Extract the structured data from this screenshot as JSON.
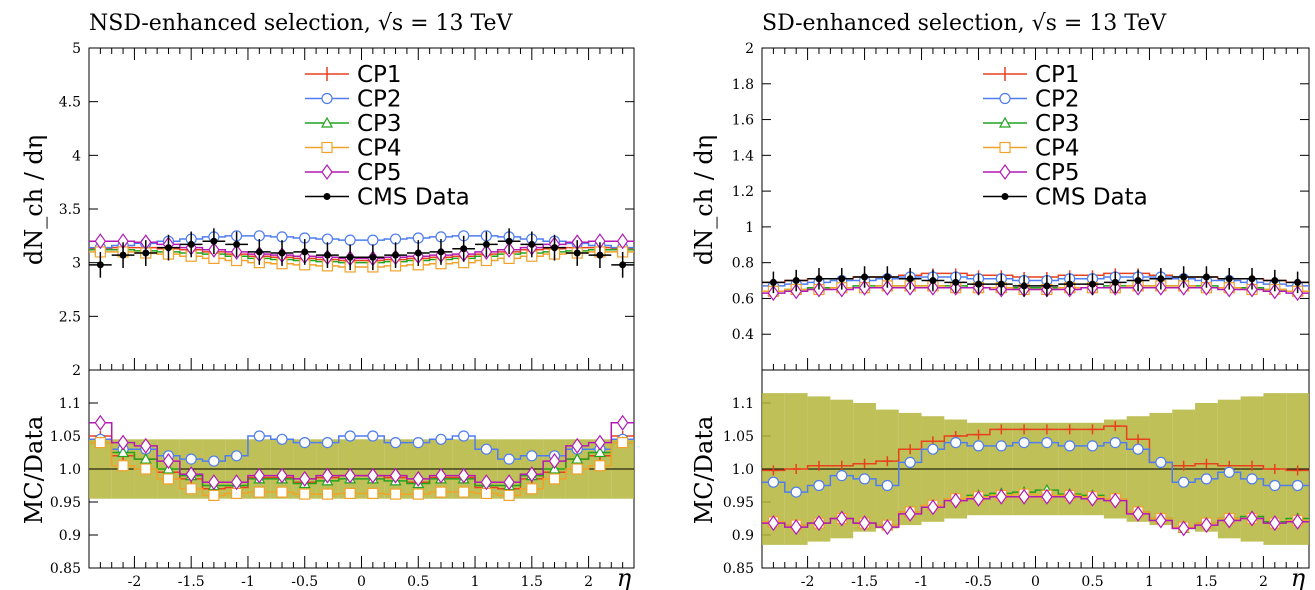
{
  "chart_data": [
    {
      "type": "line",
      "title": "NSD-enhanced selection, √s = 13 TeV",
      "ylabel": "dN_ch / dη",
      "xlabel": "η",
      "ratio_ylabel": "MC/Data",
      "xlim": [
        -2.4,
        2.4
      ],
      "ylim": [
        2,
        5
      ],
      "ratio_ylim": [
        0.85,
        1.15
      ],
      "main_yticks": [
        "2",
        "2.5",
        "3",
        "3.5",
        "4",
        "4.5",
        "5"
      ],
      "ratio_yticks": [
        "0.85",
        "0.9",
        "0.95",
        "1.0",
        "1.05",
        "1.1"
      ],
      "xticks": [
        "-2",
        "-1.5",
        "-1",
        "-0.5",
        "0",
        "0.5",
        "1",
        "1.5",
        "2"
      ],
      "x": [
        -2.3,
        -2.1,
        -1.9,
        -1.7,
        -1.5,
        -1.3,
        -1.1,
        -0.9,
        -0.7,
        -0.5,
        -0.3,
        -0.1,
        0.1,
        0.3,
        0.5,
        0.7,
        0.9,
        1.1,
        1.3,
        1.5,
        1.7,
        1.9,
        2.1,
        2.3
      ],
      "data": {
        "name": "CMS Data",
        "values": [
          2.98,
          3.07,
          3.09,
          3.14,
          3.17,
          3.2,
          3.17,
          3.1,
          3.09,
          3.1,
          3.07,
          3.05,
          3.05,
          3.07,
          3.09,
          3.1,
          3.13,
          3.17,
          3.2,
          3.17,
          3.14,
          3.09,
          3.07,
          2.98
        ],
        "errors": [
          0.12,
          0.12,
          0.12,
          0.12,
          0.12,
          0.12,
          0.12,
          0.12,
          0.12,
          0.12,
          0.12,
          0.12,
          0.12,
          0.12,
          0.12,
          0.12,
          0.12,
          0.12,
          0.12,
          0.12,
          0.12,
          0.12,
          0.12,
          0.12
        ]
      },
      "ratio_band": [
        0.955,
        1.045
      ],
      "series": [
        {
          "name": "CP1",
          "color": "#e8411f",
          "marker": "plus",
          "values": [
            3.13,
            3.14,
            3.14,
            3.13,
            3.12,
            3.1,
            3.08,
            3.06,
            3.05,
            3.04,
            3.03,
            3.02,
            3.02,
            3.03,
            3.04,
            3.05,
            3.06,
            3.08,
            3.1,
            3.12,
            3.13,
            3.14,
            3.14,
            3.13
          ],
          "ratio": [
            1.05,
            1.02,
            1.015,
            0.995,
            0.985,
            0.97,
            0.972,
            0.987,
            0.987,
            0.98,
            0.987,
            0.99,
            0.99,
            0.987,
            0.98,
            0.987,
            0.987,
            0.972,
            0.97,
            0.985,
            0.995,
            1.015,
            1.02,
            1.05
          ]
        },
        {
          "name": "CP2",
          "color": "#4f7df0",
          "marker": "circle",
          "values": [
            3.14,
            3.16,
            3.18,
            3.2,
            3.22,
            3.24,
            3.25,
            3.25,
            3.24,
            3.23,
            3.22,
            3.21,
            3.21,
            3.22,
            3.23,
            3.24,
            3.25,
            3.25,
            3.24,
            3.22,
            3.2,
            3.18,
            3.16,
            3.14
          ],
          "ratio": [
            1.045,
            1.03,
            1.03,
            1.02,
            1.015,
            1.012,
            1.02,
            1.05,
            1.045,
            1.04,
            1.04,
            1.05,
            1.05,
            1.04,
            1.04,
            1.045,
            1.05,
            1.03,
            1.015,
            1.02,
            1.02,
            1.03,
            1.03,
            1.045
          ]
        },
        {
          "name": "CP3",
          "color": "#21a41e",
          "marker": "triangle",
          "values": [
            3.12,
            3.12,
            3.11,
            3.1,
            3.09,
            3.08,
            3.06,
            3.04,
            3.03,
            3.02,
            3.01,
            3.0,
            3.0,
            3.01,
            3.02,
            3.03,
            3.04,
            3.06,
            3.08,
            3.09,
            3.1,
            3.11,
            3.12,
            3.12
          ],
          "ratio": [
            1.04,
            1.025,
            1.015,
            1.0,
            0.99,
            0.975,
            0.975,
            0.985,
            0.985,
            0.978,
            0.982,
            0.985,
            0.985,
            0.982,
            0.978,
            0.985,
            0.985,
            0.975,
            0.975,
            0.99,
            1.0,
            1.015,
            1.025,
            1.04
          ]
        },
        {
          "name": "CP4",
          "color": "#f0a22b",
          "marker": "square",
          "values": [
            3.1,
            3.1,
            3.09,
            3.08,
            3.06,
            3.04,
            3.02,
            3.0,
            2.99,
            2.98,
            2.97,
            2.96,
            2.96,
            2.97,
            2.98,
            2.99,
            3.0,
            3.02,
            3.04,
            3.06,
            3.08,
            3.09,
            3.1,
            3.1
          ],
          "ratio": [
            1.04,
            1.005,
            1.0,
            0.985,
            0.97,
            0.96,
            0.963,
            0.965,
            0.965,
            0.962,
            0.962,
            0.963,
            0.963,
            0.962,
            0.962,
            0.965,
            0.965,
            0.963,
            0.96,
            0.97,
            0.985,
            1.0,
            1.005,
            1.04
          ]
        },
        {
          "name": "CP5",
          "color": "#b319b3",
          "marker": "diamond",
          "values": [
            3.2,
            3.2,
            3.19,
            3.17,
            3.14,
            3.12,
            3.1,
            3.08,
            3.07,
            3.06,
            3.05,
            3.04,
            3.04,
            3.05,
            3.06,
            3.07,
            3.08,
            3.1,
            3.12,
            3.14,
            3.17,
            3.19,
            3.2,
            3.2
          ],
          "ratio": [
            1.07,
            1.04,
            1.035,
            1.012,
            0.992,
            0.98,
            0.98,
            0.99,
            0.99,
            0.985,
            0.99,
            0.99,
            0.99,
            0.99,
            0.985,
            0.99,
            0.99,
            0.98,
            0.98,
            0.992,
            1.012,
            1.035,
            1.04,
            1.07
          ]
        }
      ],
      "legend_position": "top-center"
    },
    {
      "type": "line",
      "title": "SD-enhanced selection, √s = 13 TeV",
      "ylabel": "dN_ch / dη",
      "xlabel": "η",
      "ratio_ylabel": "MC/Data",
      "xlim": [
        -2.4,
        2.4
      ],
      "ylim": [
        0.2,
        2
      ],
      "ratio_ylim": [
        0.85,
        1.15
      ],
      "main_yticks": [
        "0.4",
        "0.6",
        "0.8",
        "1",
        "1.2",
        "1.4",
        "1.6",
        "1.8",
        "2"
      ],
      "ratio_yticks": [
        "0.85",
        "0.9",
        "0.95",
        "1.0",
        "1.05",
        "1.1"
      ],
      "xticks": [
        "-2",
        "-1.5",
        "-1",
        "-0.5",
        "0",
        "0.5",
        "1",
        "1.5",
        "2"
      ],
      "x": [
        -2.3,
        -2.1,
        -1.9,
        -1.7,
        -1.5,
        -1.3,
        -1.1,
        -0.9,
        -0.7,
        -0.5,
        -0.3,
        -0.1,
        0.1,
        0.3,
        0.5,
        0.7,
        0.9,
        1.1,
        1.3,
        1.5,
        1.7,
        1.9,
        2.1,
        2.3
      ],
      "data": {
        "name": "CMS Data",
        "values": [
          0.69,
          0.7,
          0.71,
          0.71,
          0.72,
          0.72,
          0.71,
          0.7,
          0.69,
          0.68,
          0.68,
          0.67,
          0.67,
          0.68,
          0.68,
          0.69,
          0.7,
          0.71,
          0.72,
          0.72,
          0.71,
          0.71,
          0.7,
          0.69
        ],
        "errors": [
          0.06,
          0.06,
          0.06,
          0.06,
          0.06,
          0.06,
          0.06,
          0.06,
          0.06,
          0.06,
          0.06,
          0.06,
          0.06,
          0.06,
          0.06,
          0.06,
          0.06,
          0.06,
          0.06,
          0.06,
          0.06,
          0.06,
          0.06,
          0.06
        ]
      },
      "ratio_band_lower": [
        0.885,
        0.885,
        0.89,
        0.895,
        0.905,
        0.91,
        0.915,
        0.92,
        0.925,
        0.93,
        0.93,
        0.93,
        0.93,
        0.93,
        0.93,
        0.925,
        0.92,
        0.915,
        0.91,
        0.905,
        0.895,
        0.89,
        0.885,
        0.885
      ],
      "ratio_band_upper": [
        1.115,
        1.115,
        1.11,
        1.105,
        1.1,
        1.09,
        1.085,
        1.08,
        1.075,
        1.07,
        1.07,
        1.07,
        1.07,
        1.07,
        1.07,
        1.075,
        1.08,
        1.085,
        1.09,
        1.1,
        1.105,
        1.11,
        1.115,
        1.115
      ],
      "series": [
        {
          "name": "CP1",
          "color": "#e8411f",
          "marker": "plus",
          "values": [
            0.69,
            0.7,
            0.71,
            0.71,
            0.72,
            0.72,
            0.73,
            0.74,
            0.74,
            0.73,
            0.73,
            0.72,
            0.72,
            0.73,
            0.73,
            0.74,
            0.74,
            0.73,
            0.72,
            0.72,
            0.71,
            0.71,
            0.7,
            0.69
          ],
          "ratio": [
            0.998,
            1.0,
            1.005,
            1.005,
            1.008,
            1.012,
            1.03,
            1.042,
            1.05,
            1.052,
            1.06,
            1.06,
            1.06,
            1.06,
            1.06,
            1.065,
            1.045,
            1.01,
            1.005,
            1.008,
            1.005,
            1.005,
            1.0,
            0.998
          ]
        },
        {
          "name": "CP2",
          "color": "#4f7df0",
          "marker": "circle",
          "values": [
            0.67,
            0.68,
            0.69,
            0.7,
            0.7,
            0.71,
            0.72,
            0.72,
            0.72,
            0.71,
            0.71,
            0.7,
            0.7,
            0.71,
            0.71,
            0.72,
            0.72,
            0.72,
            0.71,
            0.7,
            0.7,
            0.69,
            0.68,
            0.67
          ],
          "ratio": [
            0.98,
            0.965,
            0.975,
            0.99,
            0.985,
            0.975,
            1.01,
            1.03,
            1.04,
            1.035,
            1.035,
            1.04,
            1.04,
            1.035,
            1.035,
            1.04,
            1.03,
            1.01,
            0.98,
            0.985,
            0.995,
            0.985,
            0.975,
            0.975
          ]
        },
        {
          "name": "CP3",
          "color": "#21a41e",
          "marker": "triangle",
          "values": [
            0.64,
            0.65,
            0.66,
            0.66,
            0.67,
            0.67,
            0.67,
            0.67,
            0.67,
            0.66,
            0.66,
            0.66,
            0.66,
            0.66,
            0.66,
            0.67,
            0.67,
            0.67,
            0.67,
            0.67,
            0.66,
            0.66,
            0.65,
            0.64
          ],
          "ratio": [
            0.92,
            0.915,
            0.918,
            0.925,
            0.918,
            0.915,
            0.935,
            0.945,
            0.955,
            0.96,
            0.963,
            0.965,
            0.968,
            0.962,
            0.96,
            0.955,
            0.935,
            0.925,
            0.91,
            0.918,
            0.925,
            0.928,
            0.92,
            0.925
          ]
        },
        {
          "name": "CP4",
          "color": "#f0a22b",
          "marker": "square",
          "values": [
            0.64,
            0.65,
            0.65,
            0.66,
            0.66,
            0.67,
            0.67,
            0.67,
            0.66,
            0.66,
            0.66,
            0.65,
            0.65,
            0.66,
            0.66,
            0.66,
            0.67,
            0.67,
            0.67,
            0.66,
            0.66,
            0.65,
            0.65,
            0.64
          ],
          "ratio": [
            0.92,
            0.915,
            0.918,
            0.925,
            0.918,
            0.915,
            0.935,
            0.945,
            0.955,
            0.958,
            0.96,
            0.962,
            0.96,
            0.96,
            0.958,
            0.955,
            0.935,
            0.925,
            0.912,
            0.918,
            0.925,
            0.925,
            0.918,
            0.922
          ]
        },
        {
          "name": "CP5",
          "color": "#b319b3",
          "marker": "diamond",
          "values": [
            0.63,
            0.64,
            0.65,
            0.65,
            0.66,
            0.66,
            0.66,
            0.66,
            0.66,
            0.66,
            0.65,
            0.65,
            0.65,
            0.65,
            0.66,
            0.66,
            0.66,
            0.66,
            0.66,
            0.66,
            0.65,
            0.65,
            0.64,
            0.63
          ],
          "ratio": [
            0.918,
            0.912,
            0.918,
            0.925,
            0.918,
            0.912,
            0.932,
            0.942,
            0.952,
            0.955,
            0.958,
            0.958,
            0.958,
            0.958,
            0.955,
            0.952,
            0.932,
            0.922,
            0.91,
            0.915,
            0.922,
            0.925,
            0.918,
            0.92
          ]
        }
      ],
      "legend_position": "top-center"
    }
  ]
}
